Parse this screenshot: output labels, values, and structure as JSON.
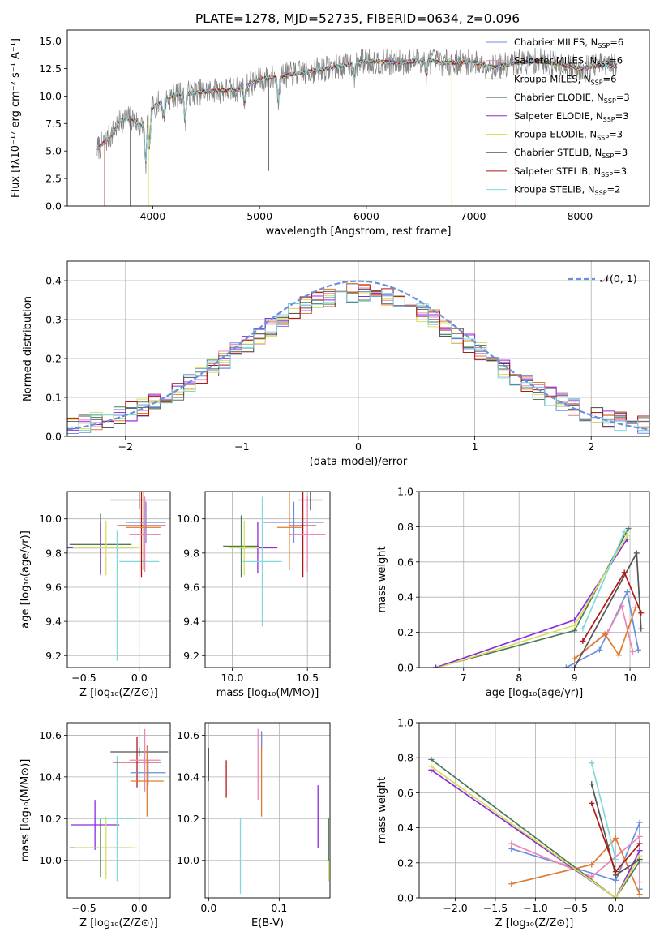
{
  "figure_title": "PLATE=1278, MJD=52735, FIBERID=0634, z=0.096",
  "colors": {
    "Chabrier MILES": "#6a8fde",
    "Salpeter MILES": "#ec86b7",
    "Kroupa MILES": "#e07a2e",
    "Chabrier ELODIE": "#4f7a5a",
    "Salpeter ELODIE": "#8a2be2",
    "Kroupa ELODIE": "#d8e05a",
    "Chabrier STELIB": "#555555",
    "Salpeter STELIB": "#b01818",
    "Kroupa STELIB": "#7fd8dc"
  },
  "legend_labels": [
    {
      "name": "Chabrier MILES",
      "text": "Chabrier MILES, N",
      "sub": "SSP",
      "tail": "=6"
    },
    {
      "name": "Salpeter MILES",
      "text": "Salpeter MILES, N",
      "sub": "SSP",
      "tail": "=6"
    },
    {
      "name": "Kroupa MILES",
      "text": "Kroupa MILES, N",
      "sub": "SSP",
      "tail": "=6"
    },
    {
      "name": "Chabrier ELODIE",
      "text": "Chabrier ELODIE, N",
      "sub": "SSP",
      "tail": "=3"
    },
    {
      "name": "Salpeter ELODIE",
      "text": "Salpeter ELODIE, N",
      "sub": "SSP",
      "tail": "=3"
    },
    {
      "name": "Kroupa ELODIE",
      "text": "Kroupa ELODIE, N",
      "sub": "SSP",
      "tail": "=3"
    },
    {
      "name": "Chabrier STELIB",
      "text": "Chabrier STELIB, N",
      "sub": "SSP",
      "tail": "=3"
    },
    {
      "name": "Salpeter STELIB",
      "text": "Salpeter STELIB, N",
      "sub": "SSP",
      "tail": "=3"
    },
    {
      "name": "Kroupa STELIB",
      "text": "Kroupa STELIB, N",
      "sub": "SSP",
      "tail": "=2"
    }
  ],
  "chart_data": [
    {
      "id": "spectrum",
      "type": "line",
      "xlabel": "wavelength [Angstrom, rest frame]",
      "ylabel": "Flux [fλ10⁻¹⁷ erg cm⁻² s⁻¹ A⁻¹]",
      "xlim": [
        3200,
        8650
      ],
      "ylim": [
        0,
        16
      ],
      "xticks": [
        4000,
        5000,
        6000,
        7000,
        8000
      ],
      "yticks": [
        0.0,
        2.5,
        5.0,
        7.5,
        10.0,
        12.5,
        15.0
      ],
      "grid": false,
      "legend": "right",
      "data_range": [
        3480,
        8350
      ],
      "continuum": [
        [
          3480,
          5.2
        ],
        [
          3600,
          6.3
        ],
        [
          3700,
          7.8
        ],
        [
          3800,
          8.0
        ],
        [
          3900,
          7.2
        ],
        [
          4000,
          9.0
        ],
        [
          4200,
          10.1
        ],
        [
          4500,
          10.4
        ],
        [
          4800,
          10.6
        ],
        [
          5000,
          11.5
        ],
        [
          5200,
          11.8
        ],
        [
          5500,
          12.3
        ],
        [
          5800,
          12.8
        ],
        [
          6000,
          13.2
        ],
        [
          6300,
          13.0
        ],
        [
          6563,
          13.3
        ],
        [
          6700,
          13.0
        ],
        [
          7000,
          13.1
        ],
        [
          7200,
          12.6
        ],
        [
          7400,
          13.0
        ],
        [
          7600,
          13.2
        ],
        [
          7800,
          12.9
        ],
        [
          8000,
          12.5
        ],
        [
          8200,
          12.8
        ],
        [
          8350,
          12.7
        ]
      ],
      "dips": [
        [
          3934,
          4.0
        ],
        [
          3969,
          3.2
        ],
        [
          4101,
          1.5
        ],
        [
          4304,
          2.5
        ],
        [
          4861,
          1.5
        ],
        [
          5175,
          2.0
        ],
        [
          5890,
          1.5
        ],
        [
          6563,
          1.5
        ]
      ],
      "deep_lines": [
        [
          3790,
          0.0,
          "Chabrier STELIB"
        ],
        [
          6800,
          0.0,
          "Kroupa ELODIE"
        ],
        [
          7400,
          0.0,
          "Kroupa MILES"
        ],
        [
          5085,
          3.2,
          "Chabrier STELIB"
        ],
        [
          3550,
          0.0,
          "Salpeter STELIB"
        ],
        [
          3960,
          0.0,
          "Kroupa ELODIE"
        ]
      ],
      "noise_amp": 1.1
    },
    {
      "id": "residual_hist",
      "type": "area",
      "xlabel": "(data-model)/error",
      "ylabel": "Normed distribution",
      "xlim": [
        -2.5,
        2.5
      ],
      "ylim": [
        0,
        0.45
      ],
      "xticks": [
        -2,
        -1,
        0,
        1,
        2
      ],
      "yticks": [
        0.0,
        0.1,
        0.2,
        0.3,
        0.4
      ],
      "grid": true,
      "legend": "top-right",
      "legend_label": "𝒩(0, 1)",
      "bin_width": 0.1,
      "curve": "gaussian(0,1)",
      "series_noise": 0.025
    },
    {
      "id": "age_vs_Z",
      "type": "scatter",
      "xlabel": "Z [log₁₀(Z/Z⊙)]",
      "ylabel": "age  [log₁₀(age/yr)]",
      "xlim": [
        -0.65,
        0.28
      ],
      "ylim": [
        9.13,
        10.16
      ],
      "xticks": [
        -0.5,
        0.0
      ],
      "yticks": [
        9.2,
        9.4,
        9.6,
        9.8,
        10.0
      ],
      "grid": true,
      "points": [
        {
          "series": "Chabrier ELODIE",
          "x": -0.35,
          "xerr": 0.28,
          "y": 9.85,
          "yerr": 0.18
        },
        {
          "series": "Salpeter ELODIE",
          "x": -0.35,
          "xerr": 0.3,
          "y": 9.83,
          "yerr": 0.15
        },
        {
          "series": "Kroupa ELODIE",
          "x": -0.3,
          "xerr": 0.3,
          "y": 9.83,
          "yerr": 0.16
        },
        {
          "series": "Kroupa STELIB",
          "x": -0.2,
          "xerr": 0.0,
          "y": 9.55,
          "yerr": 0.38
        },
        {
          "series": "Kroupa STELIB",
          "x": 0.0,
          "xerr": 0.18,
          "y": 9.75,
          "yerr": 0.0
        },
        {
          "series": "Chabrier STELIB",
          "x": 0.0,
          "xerr": 0.26,
          "y": 10.11,
          "yerr": 0.05
        },
        {
          "series": "Salpeter STELIB",
          "x": 0.02,
          "xerr": 0.22,
          "y": 9.96,
          "yerr": 0.3
        },
        {
          "series": "Chabrier MILES",
          "x": 0.06,
          "xerr": 0.18,
          "y": 9.98,
          "yerr": 0.12
        },
        {
          "series": "Salpeter MILES",
          "x": 0.05,
          "xerr": 0.14,
          "y": 9.91,
          "yerr": 0.22
        },
        {
          "series": "Kroupa MILES",
          "x": 0.04,
          "xerr": 0.16,
          "y": 9.95,
          "yerr": 0.25
        }
      ]
    },
    {
      "id": "age_vs_mass",
      "type": "scatter",
      "xlabel": "mass [log₁₀(M/M⊙)]",
      "ylabel": "",
      "xlim": [
        9.82,
        10.65
      ],
      "ylim": [
        9.13,
        10.16
      ],
      "xticks": [
        10.0,
        10.5
      ],
      "yticks": [
        9.2,
        9.4,
        9.6,
        9.8,
        10.0
      ],
      "grid": true,
      "points": [
        {
          "series": "Chabrier ELODIE",
          "x": 10.06,
          "xerr": 0.12,
          "y": 9.84,
          "yerr": 0.18
        },
        {
          "series": "Salpeter ELODIE",
          "x": 10.17,
          "xerr": 0.13,
          "y": 9.83,
          "yerr": 0.15
        },
        {
          "series": "Kroupa ELODIE",
          "x": 10.08,
          "xerr": 0.1,
          "y": 9.83,
          "yerr": 0.16
        },
        {
          "series": "Kroupa STELIB",
          "x": 10.2,
          "xerr": 0.13,
          "y": 9.75,
          "yerr": 0.38
        },
        {
          "series": "Chabrier STELIB",
          "x": 10.52,
          "xerr": 0.08,
          "y": 10.11,
          "yerr": 0.06
        },
        {
          "series": "Salpeter STELIB",
          "x": 10.47,
          "xerr": 0.09,
          "y": 9.96,
          "yerr": 0.3
        },
        {
          "series": "Chabrier MILES",
          "x": 10.41,
          "xerr": 0.2,
          "y": 9.98,
          "yerr": 0.12
        },
        {
          "series": "Salpeter MILES",
          "x": 10.5,
          "xerr": 0.12,
          "y": 9.91,
          "yerr": 0.22
        },
        {
          "series": "Kroupa MILES",
          "x": 10.38,
          "xerr": 0.08,
          "y": 9.95,
          "yerr": 0.25
        }
      ]
    },
    {
      "id": "weight_vs_age",
      "type": "line",
      "xlabel": "age  [log₁₀(age/yr)]",
      "ylabel": "mass weight",
      "xlim": [
        6.2,
        10.35
      ],
      "ylim": [
        0,
        1.0
      ],
      "xticks": [
        7,
        8,
        9,
        10
      ],
      "yticks": [
        0.0,
        0.2,
        0.4,
        0.6,
        0.8,
        1.0
      ],
      "grid": true,
      "series": [
        {
          "name": "Chabrier MILES",
          "x": [
            8.85,
            9.45,
            9.95,
            10.15
          ],
          "y": [
            0.0,
            0.1,
            0.43,
            0.1
          ]
        },
        {
          "name": "Salpeter MILES",
          "x": [
            9.0,
            9.6,
            9.85,
            10.05
          ],
          "y": [
            0.05,
            0.2,
            0.35,
            0.09
          ]
        },
        {
          "name": "Kroupa MILES",
          "x": [
            9.0,
            9.55,
            9.8,
            10.1
          ],
          "y": [
            0.05,
            0.19,
            0.07,
            0.34
          ]
        },
        {
          "name": "Chabrier ELODIE",
          "x": [
            6.5,
            9.0,
            9.97
          ],
          "y": [
            0.0,
            0.21,
            0.79
          ]
        },
        {
          "name": "Salpeter ELODIE",
          "x": [
            6.5,
            9.0,
            9.95
          ],
          "y": [
            0.0,
            0.27,
            0.73
          ]
        },
        {
          "name": "Kroupa ELODIE",
          "x": [
            6.55,
            9.0,
            9.95
          ],
          "y": [
            0.0,
            0.24,
            0.75
          ]
        },
        {
          "name": "Chabrier STELIB",
          "x": [
            9.0,
            10.12,
            10.2
          ],
          "y": [
            0.0,
            0.65,
            0.22
          ]
        },
        {
          "name": "Salpeter STELIB",
          "x": [
            9.15,
            9.9,
            10.2
          ],
          "y": [
            0.15,
            0.54,
            0.31
          ]
        },
        {
          "name": "Kroupa STELIB",
          "x": [
            9.15,
            9.9
          ],
          "y": [
            0.22,
            0.77
          ]
        }
      ]
    },
    {
      "id": "mass_vs_Z",
      "type": "scatter",
      "xlabel": "Z [log₁₀(Z/Z⊙)]",
      "ylabel": "mass [log₁₀(M/M⊙)]",
      "xlim": [
        -0.65,
        0.28
      ],
      "ylim": [
        9.82,
        10.66
      ],
      "xticks": [
        -0.5,
        0.0
      ],
      "yticks": [
        10.0,
        10.2,
        10.4,
        10.6
      ],
      "grid": true,
      "points": [
        {
          "series": "Chabrier ELODIE",
          "x": -0.35,
          "xerr": 0.28,
          "y": 10.06,
          "yerr": 0.14
        },
        {
          "series": "Salpeter ELODIE",
          "x": -0.4,
          "xerr": 0.22,
          "y": 10.17,
          "yerr": 0.12
        },
        {
          "series": "Kroupa ELODIE",
          "x": -0.3,
          "xerr": 0.28,
          "y": 10.06,
          "yerr": 0.15
        },
        {
          "series": "Kroupa STELIB",
          "x": -0.2,
          "xerr": 0.18,
          "y": 10.2,
          "yerr": 0.3
        },
        {
          "series": "Chabrier STELIB",
          "x": 0.0,
          "xerr": 0.26,
          "y": 10.52,
          "yerr": 0.02
        },
        {
          "series": "Salpeter STELIB",
          "x": -0.02,
          "xerr": 0.22,
          "y": 10.47,
          "yerr": 0.12
        },
        {
          "series": "Chabrier MILES",
          "x": 0.08,
          "xerr": 0.16,
          "y": 10.42,
          "yerr": 0.06
        },
        {
          "series": "Salpeter MILES",
          "x": 0.05,
          "xerr": 0.14,
          "y": 10.48,
          "yerr": 0.15
        },
        {
          "series": "Kroupa MILES",
          "x": 0.07,
          "xerr": 0.15,
          "y": 10.38,
          "yerr": 0.17
        }
      ]
    },
    {
      "id": "mass_vs_EBV",
      "type": "scatter",
      "xlabel": "E(B-V)",
      "ylabel": "",
      "xlim": [
        -0.005,
        0.172
      ],
      "ylim": [
        9.82,
        10.66
      ],
      "xticks": [
        0.0,
        0.1
      ],
      "yticks": [
        10.0,
        10.2,
        10.4,
        10.6
      ],
      "grid": true,
      "points": [
        {
          "series": "Chabrier STELIB",
          "x": 0.0,
          "xerr": 0.0,
          "y": 10.46,
          "yerr": 0.08
        },
        {
          "series": "Salpeter STELIB",
          "x": 0.025,
          "xerr": 0.0,
          "y": 10.39,
          "yerr": 0.09
        },
        {
          "series": "Kroupa STELIB",
          "x": 0.045,
          "xerr": 0.0,
          "y": 10.02,
          "yerr": 0.18
        },
        {
          "series": "Salpeter MILES",
          "x": 0.07,
          "xerr": 0.0,
          "y": 10.46,
          "yerr": 0.17
        },
        {
          "series": "Kroupa MILES",
          "x": 0.075,
          "xerr": 0.0,
          "y": 10.41,
          "yerr": 0.2
        },
        {
          "series": "Chabrier MILES",
          "x": 0.075,
          "xerr": 0.0,
          "y": 10.58,
          "yerr": 0.04
        },
        {
          "series": "Salpeter ELODIE",
          "x": 0.155,
          "xerr": 0.0,
          "y": 10.21,
          "yerr": 0.15
        },
        {
          "series": "Kroupa ELODIE",
          "x": 0.17,
          "xerr": 0.0,
          "y": 10.05,
          "yerr": 0.15
        },
        {
          "series": "Chabrier ELODIE",
          "x": 0.17,
          "xerr": 0.0,
          "y": 10.1,
          "yerr": 0.1
        }
      ]
    },
    {
      "id": "weight_vs_Z",
      "type": "line",
      "xlabel": "Z [log₁₀(Z/Z⊙)]",
      "ylabel": "mass weight",
      "xlim": [
        -2.45,
        0.42
      ],
      "ylim": [
        0,
        1.0
      ],
      "xticks": [
        -2.0,
        -1.5,
        -1.0,
        -0.5,
        0.0
      ],
      "yticks": [
        0.0,
        0.2,
        0.4,
        0.6,
        0.8,
        1.0
      ],
      "grid": true,
      "series": [
        {
          "name": "Chabrier MILES",
          "x": [
            -1.3,
            0.0,
            0.3,
            0.3
          ],
          "y": [
            0.28,
            0.1,
            0.43,
            0.05
          ]
        },
        {
          "name": "Salpeter MILES",
          "x": [
            -1.3,
            -0.3,
            0.3,
            0.3
          ],
          "y": [
            0.31,
            0.12,
            0.35,
            0.09
          ]
        },
        {
          "name": "Kroupa MILES",
          "x": [
            -1.3,
            -0.3,
            0.0,
            0.3
          ],
          "y": [
            0.08,
            0.19,
            0.34,
            0.02
          ]
        },
        {
          "name": "Chabrier ELODIE",
          "x": [
            -2.3,
            0.0,
            0.3
          ],
          "y": [
            0.79,
            0.0,
            0.21
          ]
        },
        {
          "name": "Salpeter ELODIE",
          "x": [
            -2.3,
            0.0,
            0.3
          ],
          "y": [
            0.73,
            0.0,
            0.27
          ]
        },
        {
          "name": "Kroupa ELODIE",
          "x": [
            -2.3,
            0.0,
            0.3
          ],
          "y": [
            0.75,
            0.0,
            0.24
          ]
        },
        {
          "name": "Chabrier STELIB",
          "x": [
            -0.3,
            0.0,
            0.3
          ],
          "y": [
            0.65,
            0.13,
            0.22
          ]
        },
        {
          "name": "Salpeter STELIB",
          "x": [
            -0.3,
            0.0,
            0.3
          ],
          "y": [
            0.54,
            0.15,
            0.31
          ]
        },
        {
          "name": "Kroupa STELIB",
          "x": [
            -0.3,
            0.0
          ],
          "y": [
            0.77,
            0.22
          ]
        }
      ]
    }
  ]
}
